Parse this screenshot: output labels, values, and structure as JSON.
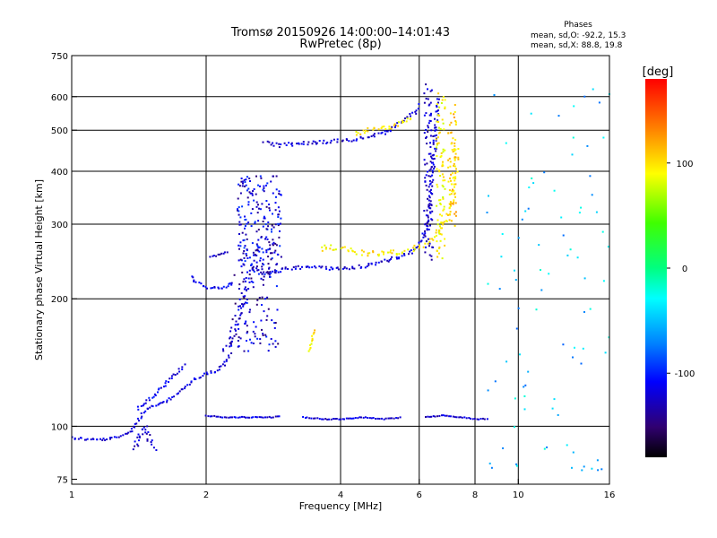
{
  "chart_data": {
    "type": "scatter",
    "title": "Tromsø 20150926 14:00:00–14:01:43",
    "subtitle": "RwPretec (8p)",
    "xlabel": "Frequency [MHz]",
    "ylabel": "Stationary phase Virtual Height [km]",
    "x_scale": "log",
    "y_scale": "log",
    "xlim": [
      1,
      16
    ],
    "ylim": [
      73,
      750
    ],
    "x_ticks": [
      1,
      2,
      4,
      6,
      8,
      10,
      16
    ],
    "x_tick_labels": [
      "1",
      "2",
      "4",
      "6",
      "8",
      "10",
      "16"
    ],
    "x_grid": [
      2,
      4,
      6,
      8,
      10
    ],
    "y_ticks": [
      75,
      100,
      200,
      300,
      400,
      500,
      600,
      750
    ],
    "y_tick_labels": [
      "75",
      "100",
      "200",
      "300",
      "400",
      "500",
      "600",
      "750"
    ],
    "y_grid": [
      100,
      200,
      300,
      400,
      500,
      600
    ],
    "grid": true,
    "phases_box": {
      "title": "Phases",
      "line_o": "mean, sd,O: -92.2, 15.3",
      "line_x": "mean, sd,X:  88.8, 19.8"
    },
    "colorbar": {
      "label": "[deg]",
      "range": [
        -180,
        180
      ],
      "ticks": [
        100,
        0,
        -100
      ],
      "tick_labels": [
        "100",
        "0",
        "-100"
      ],
      "placement": "right"
    },
    "traces": [
      {
        "points": [
          [
            1.0,
            94
          ],
          [
            1.1,
            93
          ],
          [
            1.2,
            93
          ],
          [
            1.3,
            95
          ],
          [
            1.36,
            98
          ],
          [
            1.4,
            102
          ],
          [
            1.45,
            108
          ],
          [
            1.5,
            111
          ],
          [
            1.6,
            113
          ],
          [
            1.7,
            118
          ],
          [
            1.8,
            124
          ],
          [
            1.9,
            130
          ],
          [
            2.0,
            133
          ],
          [
            2.1,
            135
          ],
          [
            2.2,
            140
          ],
          [
            2.28,
            150
          ]
        ],
        "phase": -110,
        "jitter": 3
      },
      {
        "points": [
          [
            1.4,
            110
          ],
          [
            1.5,
            116
          ],
          [
            1.6,
            124
          ],
          [
            1.7,
            132
          ],
          [
            1.8,
            140
          ]
        ],
        "phase": -105,
        "jitter": 3
      },
      {
        "points": [
          [
            1.38,
            88
          ],
          [
            1.42,
            95
          ],
          [
            1.46,
            100
          ],
          [
            1.5,
            92
          ],
          [
            1.55,
            88
          ]
        ],
        "phase": -115,
        "jitter": 5
      },
      {
        "points": [
          [
            2.2,
            152
          ],
          [
            2.3,
            165
          ],
          [
            2.38,
            185
          ],
          [
            2.45,
            210
          ],
          [
            2.5,
            230
          ],
          [
            2.55,
            245
          ],
          [
            2.6,
            258
          ]
        ],
        "phase": -110,
        "jitter": 8
      },
      {
        "points": [
          [
            1.85,
            225
          ],
          [
            1.9,
            218
          ],
          [
            2.0,
            213
          ],
          [
            2.1,
            212
          ],
          [
            2.2,
            212
          ],
          [
            2.27,
            220
          ]
        ],
        "phase": -105,
        "jitter": 3
      },
      {
        "points": [
          [
            2.05,
            250
          ],
          [
            2.15,
            255
          ],
          [
            2.25,
            258
          ]
        ],
        "phase": -115,
        "jitter": 2
      },
      {
        "points": [
          [
            2.55,
            235
          ],
          [
            2.7,
            232
          ],
          [
            2.9,
            232
          ],
          [
            3.1,
            236
          ],
          [
            3.4,
            238
          ],
          [
            3.8,
            236
          ],
          [
            4.2,
            236
          ],
          [
            4.6,
            240
          ],
          [
            5.0,
            246
          ],
          [
            5.4,
            250
          ],
          [
            5.7,
            256
          ],
          [
            6.0,
            268
          ],
          [
            6.2,
            290
          ],
          [
            6.3,
            320
          ],
          [
            6.4,
            380
          ],
          [
            6.5,
            450
          ],
          [
            6.55,
            520
          ],
          [
            6.6,
            600
          ]
        ],
        "phase": -110,
        "jitter": 4
      },
      {
        "points": [
          [
            3.6,
            262
          ],
          [
            3.8,
            265
          ],
          [
            4.0,
            262
          ],
          [
            4.3,
            258
          ],
          [
            4.6,
            256
          ],
          [
            5.0,
            256
          ],
          [
            5.4,
            258
          ],
          [
            5.8,
            262
          ],
          [
            6.2,
            270
          ],
          [
            6.6,
            285
          ],
          [
            6.9,
            310
          ],
          [
            7.1,
            340
          ],
          [
            7.2,
            380
          ],
          [
            7.25,
            420
          ],
          [
            7.3,
            460
          ]
        ],
        "phase": 100,
        "jitter": 6
      },
      {
        "points": [
          [
            2.7,
            470
          ],
          [
            2.9,
            460
          ],
          [
            3.2,
            465
          ],
          [
            3.5,
            468
          ],
          [
            3.8,
            470
          ],
          [
            4.1,
            472
          ],
          [
            4.4,
            478
          ],
          [
            4.7,
            485
          ],
          [
            5.0,
            490
          ],
          [
            5.3,
            510
          ],
          [
            5.6,
            530
          ],
          [
            5.9,
            555
          ],
          [
            6.0,
            580
          ]
        ],
        "phase": -110,
        "jitter": 4
      },
      {
        "points": [
          [
            4.3,
            490
          ],
          [
            4.6,
            500
          ],
          [
            4.9,
            505
          ],
          [
            5.2,
            510
          ],
          [
            5.5,
            520
          ],
          [
            5.8,
            535
          ]
        ],
        "phase": 100,
        "jitter": 5
      },
      {
        "points": [
          [
            6.3,
            250
          ],
          [
            6.3,
            300
          ],
          [
            6.3,
            350
          ],
          [
            6.3,
            400
          ],
          [
            6.3,
            450
          ],
          [
            6.3,
            500
          ],
          [
            6.3,
            560
          ],
          [
            6.3,
            640
          ]
        ],
        "phase": -115,
        "jitter": 10
      },
      {
        "points": [
          [
            6.7,
            250
          ],
          [
            6.7,
            300
          ],
          [
            6.7,
            380
          ],
          [
            6.7,
            450
          ],
          [
            6.7,
            520
          ],
          [
            6.7,
            610
          ]
        ],
        "phase": 95,
        "jitter": 10
      },
      {
        "points": [
          [
            7.1,
            300
          ],
          [
            7.1,
            350
          ],
          [
            7.1,
            420
          ],
          [
            7.1,
            500
          ],
          [
            7.1,
            570
          ]
        ],
        "phase": 110,
        "jitter": 10
      },
      {
        "points": [
          [
            2.0,
            106
          ],
          [
            2.2,
            105
          ],
          [
            2.5,
            105
          ],
          [
            2.8,
            105
          ],
          [
            2.95,
            106
          ]
        ],
        "phase": -110,
        "jitter": 1
      },
      {
        "points": [
          [
            3.3,
            105
          ],
          [
            3.7,
            104
          ],
          [
            4.0,
            104
          ],
          [
            4.5,
            105
          ],
          [
            5.0,
            104
          ],
          [
            5.5,
            105
          ]
        ],
        "phase": -110,
        "jitter": 1
      },
      {
        "points": [
          [
            6.2,
            105
          ],
          [
            6.8,
            106
          ],
          [
            7.5,
            105
          ],
          [
            8.0,
            104
          ],
          [
            8.6,
            104
          ]
        ],
        "phase": -115,
        "jitter": 1
      },
      {
        "points": [
          [
            3.4,
            150
          ],
          [
            3.45,
            160
          ],
          [
            3.5,
            170
          ]
        ],
        "phase": 100,
        "jitter": 2
      }
    ],
    "clouds": [
      {
        "x": [
          2.35,
          2.95
        ],
        "y": [
          225,
          390
        ],
        "n": 220,
        "phase": -110
      },
      {
        "x": [
          2.25,
          2.9
        ],
        "y": [
          150,
          230
        ],
        "n": 90,
        "phase": -115
      },
      {
        "x": [
          8.5,
          16.0
        ],
        "y": [
          75,
          700
        ],
        "n": 90,
        "phase": -40
      }
    ]
  }
}
